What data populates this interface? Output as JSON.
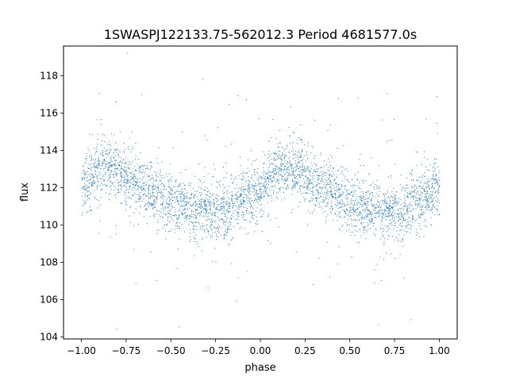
{
  "chart_data": {
    "type": "scatter",
    "title": "1SWASPJ122133.75-562012.3 Period 4681577.0s",
    "xlabel": "phase",
    "ylabel": "flux",
    "xlim": [
      -1.1,
      1.1
    ],
    "ylim": [
      103.9,
      119.6
    ],
    "xticks": [
      -1.0,
      -0.75,
      -0.5,
      -0.25,
      0.0,
      0.25,
      0.5,
      0.75,
      1.0
    ],
    "xtick_labels": [
      "−1.00",
      "−0.75",
      "−0.50",
      "−0.25",
      "0.00",
      "0.25",
      "0.50",
      "0.75",
      "1.00"
    ],
    "yticks": [
      104,
      106,
      108,
      110,
      112,
      114,
      116,
      118
    ],
    "ytick_labels": [
      "104",
      "106",
      "108",
      "110",
      "112",
      "114",
      "116",
      "118"
    ],
    "grid": false,
    "legend": "none",
    "marker_color": "#1f77b4",
    "series": [
      {
        "name": "",
        "description_points": [
          {
            "phase": -1.0,
            "flux": 112.0
          },
          {
            "phase": -0.9,
            "flux": 113.0
          },
          {
            "phase": -0.82,
            "flux": 113.0
          },
          {
            "phase": -0.7,
            "flux": 112.3
          },
          {
            "phase": -0.6,
            "flux": 111.8
          },
          {
            "phase": -0.5,
            "flux": 111.2
          },
          {
            "phase": -0.4,
            "flux": 110.9
          },
          {
            "phase": -0.3,
            "flux": 110.7
          },
          {
            "phase": -0.2,
            "flux": 110.8
          },
          {
            "phase": -0.1,
            "flux": 111.4
          },
          {
            "phase": 0.0,
            "flux": 112.0
          },
          {
            "phase": 0.1,
            "flux": 113.0
          },
          {
            "phase": 0.18,
            "flux": 113.0
          },
          {
            "phase": 0.3,
            "flux": 112.3
          },
          {
            "phase": 0.4,
            "flux": 111.8
          },
          {
            "phase": 0.5,
            "flux": 111.2
          },
          {
            "phase": 0.6,
            "flux": 110.9
          },
          {
            "phase": 0.7,
            "flux": 110.7
          },
          {
            "phase": 0.8,
            "flux": 110.8
          },
          {
            "phase": 0.9,
            "flux": 111.4
          },
          {
            "phase": 1.0,
            "flux": 112.0
          }
        ]
      }
    ]
  }
}
